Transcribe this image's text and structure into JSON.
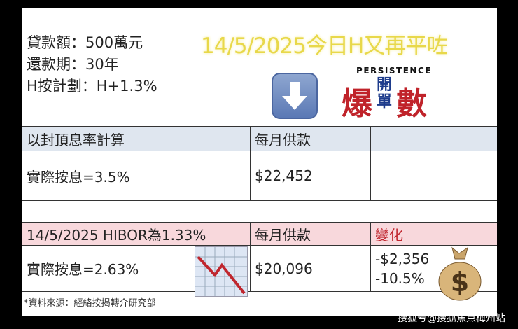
{
  "info": {
    "loan": "貸款額：500萬元",
    "term": "還款期：30年",
    "plan": "H按計劃：H+1.3%"
  },
  "headline": "14/5/2025今日H又再平咗",
  "brand": {
    "top": "PERSISTENCE",
    "c1": "爆",
    "c2": "開單",
    "c3": "數"
  },
  "icons": {
    "arrow": "down-arrow-icon",
    "chart": "chart-decreasing-icon",
    "bag": "money-bag-icon"
  },
  "table1": {
    "header": [
      "以封頂息率計算",
      "每月供款"
    ],
    "row": [
      "實際按息=3.5%",
      "$22,452"
    ]
  },
  "table2": {
    "header": [
      "14/5/2025 HIBOR為1.33%",
      "每月供款",
      "變化"
    ],
    "row": [
      "實際按息=2.63%",
      "$20,096"
    ],
    "change": [
      "-$2,356",
      "-10.5%"
    ]
  },
  "footnote": "*資料來源：經絡按揭轉介研究部",
  "watermark": "搜狐号@搜狐焦点梅州站",
  "colors": {
    "headline": "#e8d84a",
    "header1": "#dfe6ef",
    "header2": "#f8d8dc",
    "red": "#c0262e"
  }
}
